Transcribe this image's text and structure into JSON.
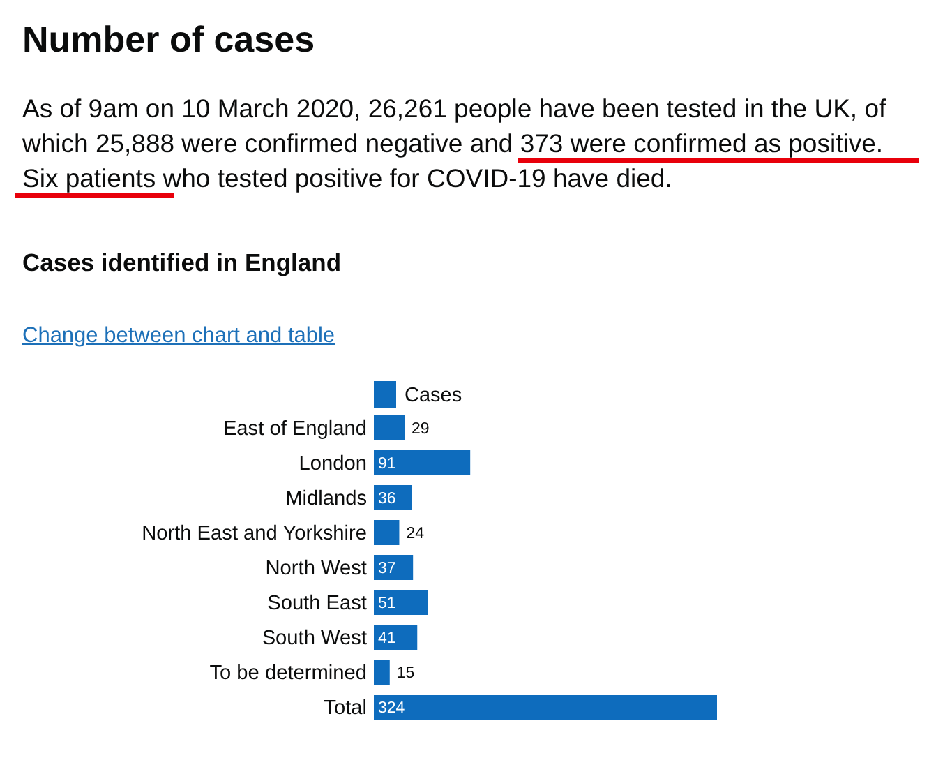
{
  "chart_data": {
    "type": "bar",
    "orientation": "horizontal",
    "title": "Number of cases",
    "subtitle": "As of 9am on 10 March 2020, 26,261 people have been tested in the UK, of which 25,888 were confirmed negative and 373 were confirmed as positive. Six patients who tested positive for COVID-19 have died.",
    "annotations": [
      "Cases identified in England",
      "Change between chart and table"
    ],
    "categories": [
      "East of England",
      "London",
      "Midlands",
      "North East and Yorkshire",
      "North West",
      "South East",
      "South West",
      "To be determined",
      "Total"
    ],
    "series": [
      {
        "name": "Cases",
        "color": "#0e6cbd",
        "values": [
          29,
          91,
          36,
          24,
          37,
          51,
          41,
          15,
          324
        ]
      }
    ],
    "data_labels": true,
    "legend": "top left"
  }
}
